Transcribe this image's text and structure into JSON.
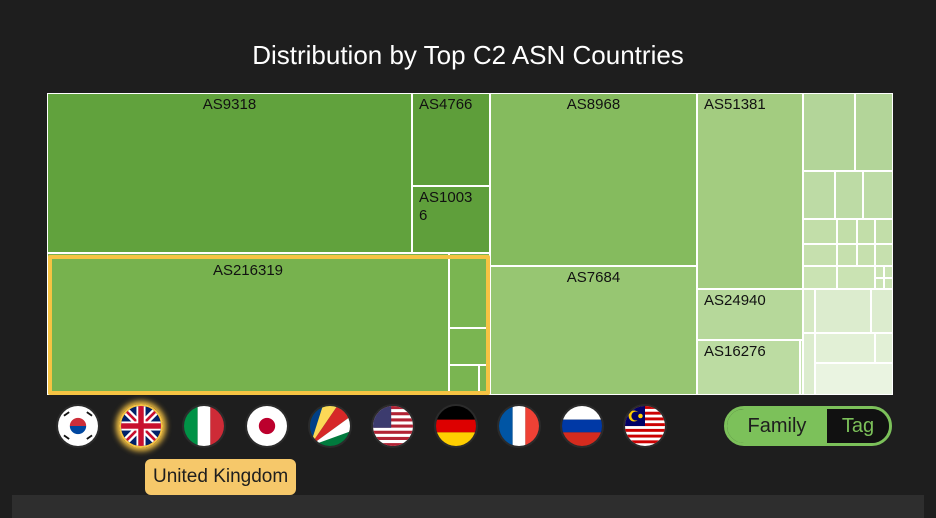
{
  "chart_data": {
    "type": "treemap",
    "title": "Distribution by Top C2 ASN Countries",
    "items": [
      {
        "label": "AS9318",
        "value": 57,
        "color": "#61a23d"
      },
      {
        "label": "AS216319",
        "value": 48,
        "color": "#77b24e"
      },
      {
        "label": "AS4766",
        "value": 7,
        "color": "#5e9e3a"
      },
      {
        "label": "AS10036",
        "value": 5,
        "color": "#5f9f3b"
      },
      {
        "label": "AS8968",
        "value": 35,
        "color": "#85bb5e"
      },
      {
        "label": "AS7684",
        "value": 25,
        "color": "#97c672"
      },
      {
        "label": "AS51381",
        "value": 16,
        "color": "#a3cc80"
      },
      {
        "label": "AS24940",
        "value": 5,
        "color": "#b6d89a"
      },
      {
        "label": "AS16276",
        "value": 4,
        "color": "#bcdca2"
      }
    ],
    "highlighted_country": "United Kingdom"
  },
  "countries": [
    {
      "name": "South Korea",
      "icon": "flag-south-korea"
    },
    {
      "name": "United Kingdom",
      "icon": "flag-united-kingdom",
      "active": true
    },
    {
      "name": "Italy",
      "icon": "flag-italy"
    },
    {
      "name": "Japan",
      "icon": "flag-japan"
    },
    {
      "name": "Seychelles",
      "icon": "flag-seychelles"
    },
    {
      "name": "United States",
      "icon": "flag-united-states"
    },
    {
      "name": "Germany",
      "icon": "flag-germany"
    },
    {
      "name": "France",
      "icon": "flag-france"
    },
    {
      "name": "Russia",
      "icon": "flag-russia"
    },
    {
      "name": "Malaysia",
      "icon": "flag-malaysia"
    }
  ],
  "tooltip": {
    "text": "United Kingdom"
  },
  "toggle": {
    "family_label": "Family",
    "tag_label": "Tag",
    "selected": "Family"
  },
  "colors": {
    "accent": "#7cc15a",
    "highlight": "#f6c343",
    "background": "#1e1e1e"
  }
}
